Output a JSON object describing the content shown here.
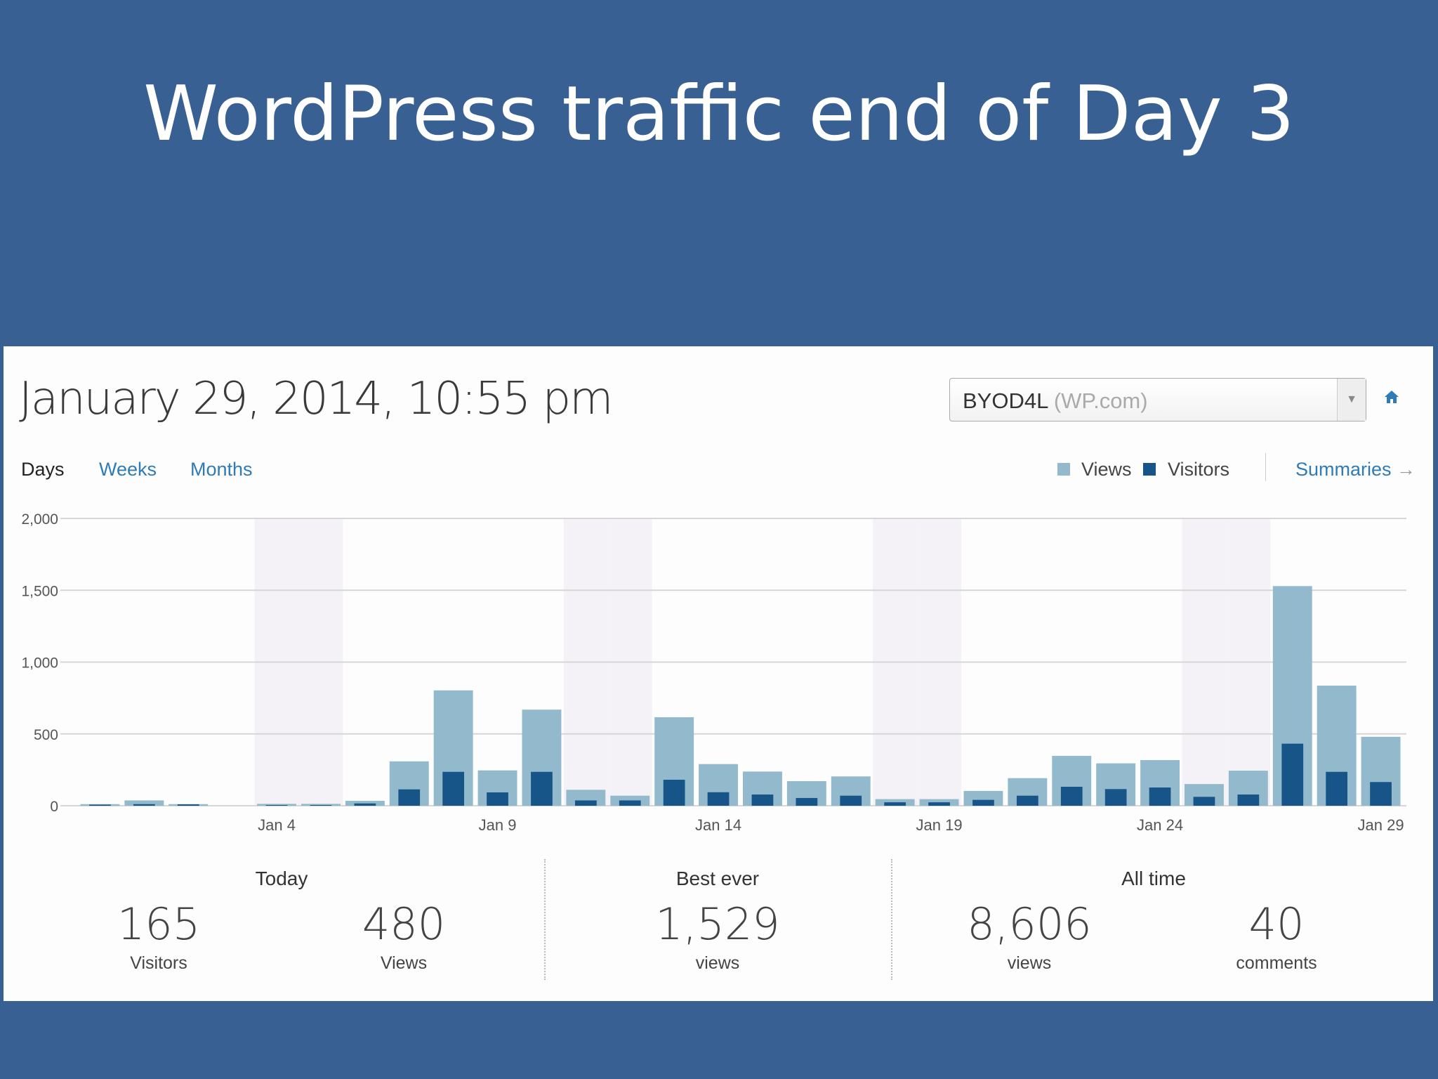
{
  "slide_title": "WordPress traffic end of Day 3",
  "header": {
    "datetime": "January 29, 2014, 10:55 pm",
    "site_select": {
      "name": "BYOD4L",
      "suffix": "(WP.com)"
    },
    "home_icon": "home-icon",
    "dropdown_icon": "triangle-down-icon"
  },
  "tabs": [
    {
      "label": "Days",
      "active": true
    },
    {
      "label": "Weeks",
      "active": false
    },
    {
      "label": "Months",
      "active": false
    }
  ],
  "legend": {
    "views": "Views",
    "visitors": "Visitors"
  },
  "summaries_link": "Summaries",
  "colors": {
    "views": "#92bacc",
    "visitors": "#175588",
    "weekend": "#f4f2f6",
    "link": "#2e7bb8",
    "slide_bg": "#386093"
  },
  "chart_data": {
    "type": "bar",
    "categories": [
      "Dec 31",
      "Jan 1",
      "Jan 2",
      "Jan 3",
      "Jan 4",
      "Jan 5",
      "Jan 6",
      "Jan 7",
      "Jan 8",
      "Jan 9",
      "Jan 10",
      "Jan 11",
      "Jan 12",
      "Jan 13",
      "Jan 14",
      "Jan 15",
      "Jan 16",
      "Jan 17",
      "Jan 18",
      "Jan 19",
      "Jan 20",
      "Jan 21",
      "Jan 22",
      "Jan 23",
      "Jan 24",
      "Jan 25",
      "Jan 26",
      "Jan 27",
      "Jan 28",
      "Jan 29"
    ],
    "weekend": [
      false,
      false,
      false,
      false,
      true,
      true,
      false,
      false,
      false,
      false,
      false,
      true,
      true,
      false,
      false,
      false,
      false,
      false,
      true,
      true,
      false,
      false,
      false,
      false,
      false,
      true,
      true,
      false,
      false,
      false
    ],
    "series": [
      {
        "name": "Views",
        "values": [
          11,
          37,
          11,
          0,
          13,
          13,
          34,
          309,
          803,
          246,
          669,
          111,
          70,
          616,
          290,
          238,
          171,
          204,
          46,
          46,
          103,
          192,
          347,
          295,
          318,
          151,
          244,
          1529,
          836,
          480
        ]
      },
      {
        "name": "Visitors",
        "values": [
          8,
          11,
          10,
          0,
          5,
          5,
          16,
          114,
          236,
          93,
          236,
          37,
          37,
          181,
          94,
          78,
          54,
          70,
          24,
          24,
          41,
          70,
          132,
          116,
          127,
          62,
          78,
          432,
          236,
          165
        ]
      }
    ],
    "x_tick_labels": [
      "Jan 4",
      "Jan 9",
      "Jan 14",
      "Jan 19",
      "Jan 24",
      "Jan 29"
    ],
    "y_ticks": [
      0,
      500,
      1000,
      1500,
      2000
    ],
    "y_tick_labels": [
      "0",
      "500",
      "1,000",
      "1,500",
      "2,000"
    ],
    "ylim": [
      0,
      2000
    ],
    "grid": true,
    "legend_position": "top-right"
  },
  "stats": {
    "today": {
      "label": "Today",
      "visitors": "165",
      "visitors_label": "Visitors",
      "views": "480",
      "views_label": "Views"
    },
    "best": {
      "label": "Best ever",
      "views": "1,529",
      "views_label": "views"
    },
    "all_time": {
      "label": "All time",
      "views": "8,606",
      "views_label": "views",
      "comments": "40",
      "comments_label": "comments"
    }
  }
}
